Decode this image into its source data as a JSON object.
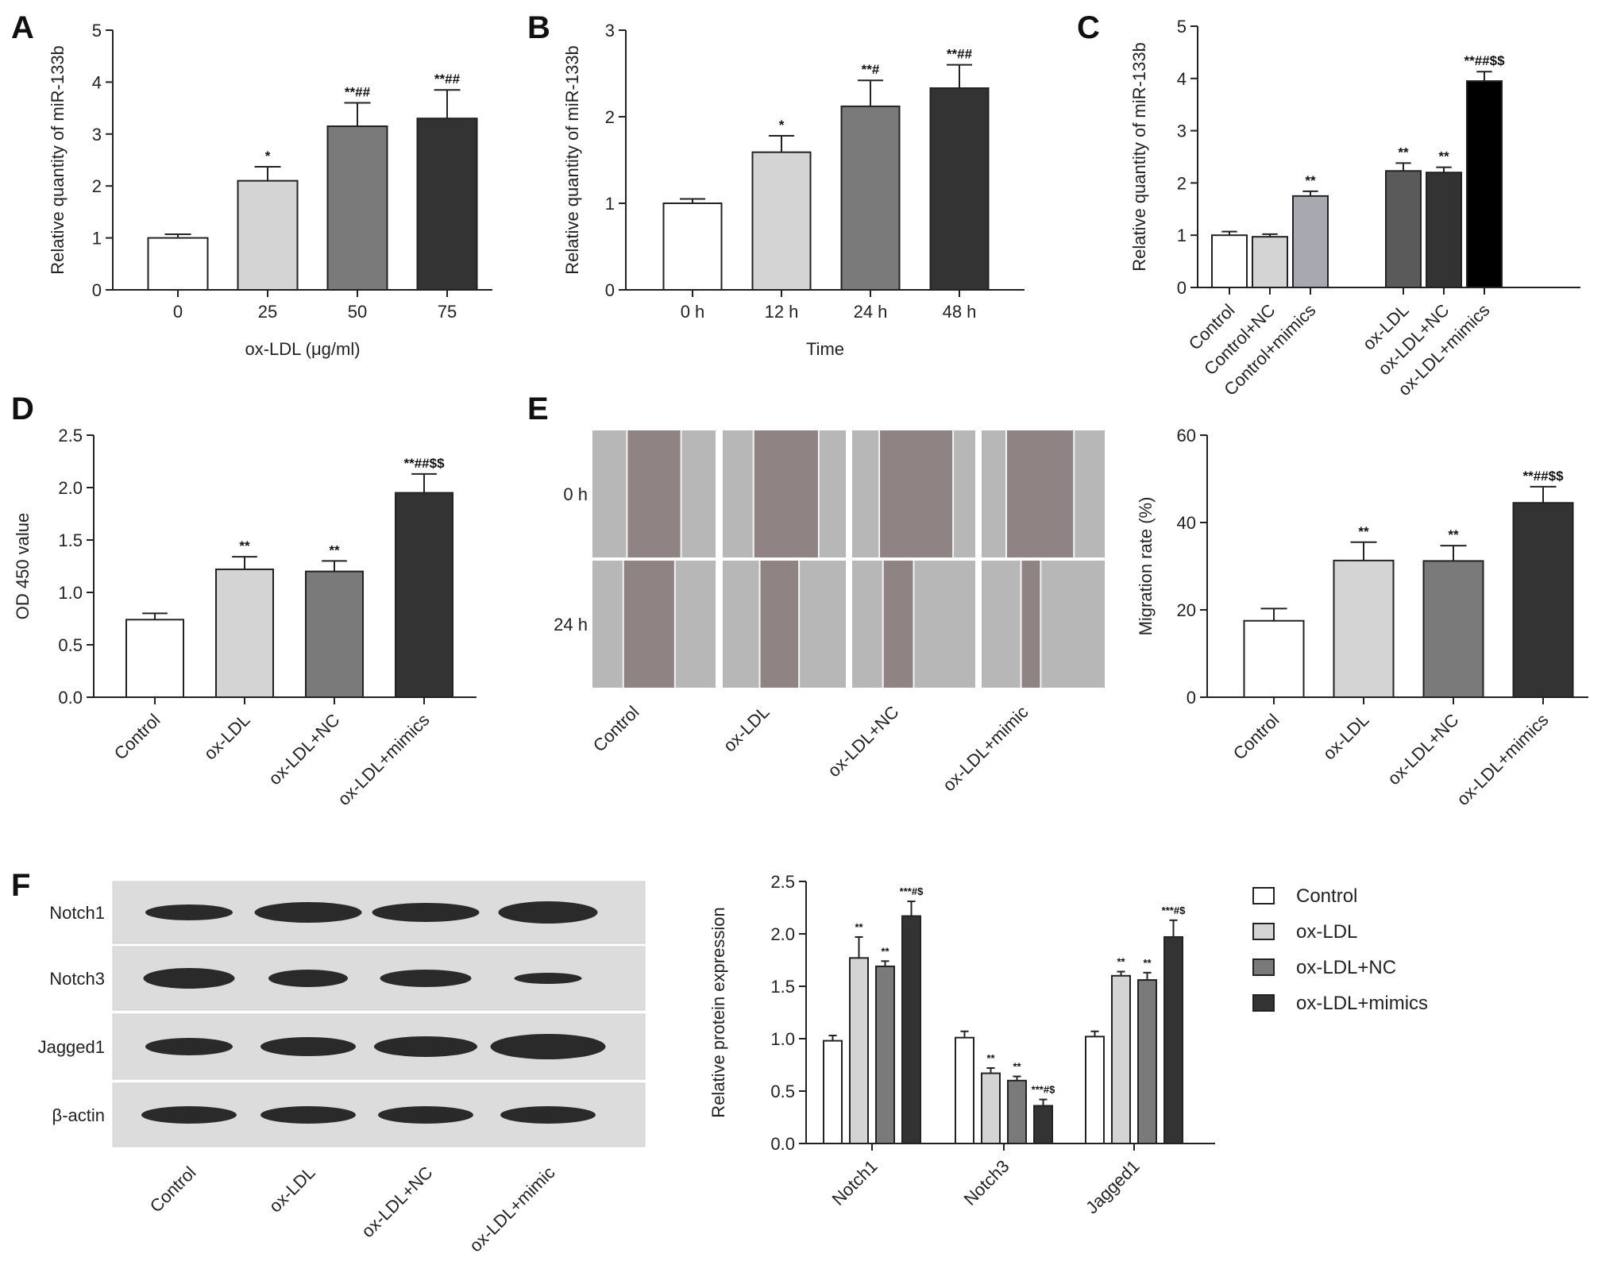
{
  "chart_data": [
    {
      "id": "A",
      "panel_label": "A",
      "type": "bar",
      "categories": [
        "0",
        "25",
        "50",
        "75"
      ],
      "values": [
        1.0,
        2.1,
        3.15,
        3.3
      ],
      "errors": [
        0.07,
        0.27,
        0.45,
        0.55
      ],
      "annotations": [
        "",
        "*",
        "**##",
        "**##"
      ],
      "colors": [
        "#ffffff",
        "#d4d4d4",
        "#7a7a7a",
        "#333333"
      ],
      "ylim": [
        0,
        5
      ],
      "yticks": [
        "0",
        "1",
        "2",
        "3",
        "4",
        "5"
      ],
      "xlabel": "ox-LDL (μg/ml)",
      "ylabel": "Relative quantity of miR-133b"
    },
    {
      "id": "B",
      "panel_label": "B",
      "type": "bar",
      "categories": [
        "0 h",
        "12 h",
        "24 h",
        "48 h"
      ],
      "values": [
        1.0,
        1.59,
        2.12,
        2.33
      ],
      "errors": [
        0.05,
        0.19,
        0.3,
        0.27
      ],
      "annotations": [
        "",
        "*",
        "**#",
        "**##"
      ],
      "colors": [
        "#ffffff",
        "#d4d4d4",
        "#7a7a7a",
        "#333333"
      ],
      "ylim": [
        0,
        3
      ],
      "yticks": [
        "0",
        "1",
        "2",
        "3"
      ],
      "xlabel": "Time",
      "ylabel": "Relative quantity of miR-133b"
    },
    {
      "id": "C",
      "panel_label": "C",
      "type": "bar",
      "categories": [
        "Control",
        "Control+NC",
        "Control+mimics",
        "ox-LDL",
        "ox-LDL+NC",
        "ox-LDL+mimics"
      ],
      "values": [
        1.0,
        0.97,
        1.75,
        2.23,
        2.2,
        3.95
      ],
      "errors": [
        0.07,
        0.05,
        0.09,
        0.15,
        0.1,
        0.18
      ],
      "annotations": [
        "",
        "",
        "**",
        "**",
        "**",
        "**##$$"
      ],
      "colors": [
        "#ffffff",
        "#d4d4d4",
        "#a8a8b0",
        "#5a5a5a",
        "#333333",
        "#000000"
      ],
      "ylim": [
        0,
        5
      ],
      "yticks": [
        "0",
        "1",
        "2",
        "3",
        "4",
        "5"
      ],
      "xlabel": "",
      "ylabel": "Relative quantity of miR-133b"
    },
    {
      "id": "D",
      "panel_label": "D",
      "type": "bar",
      "categories": [
        "Control",
        "ox-LDL",
        "ox-LDL+NC",
        "ox-LDL+mimics"
      ],
      "values": [
        0.74,
        1.22,
        1.2,
        1.95
      ],
      "errors": [
        0.06,
        0.12,
        0.1,
        0.18
      ],
      "annotations": [
        "",
        "**",
        "**",
        "**##$$"
      ],
      "colors": [
        "#ffffff",
        "#d4d4d4",
        "#7a7a7a",
        "#333333"
      ],
      "ylim": [
        0,
        2.5
      ],
      "yticks": [
        "0.0",
        "0.5",
        "1.0",
        "1.5",
        "2.0",
        "2.5"
      ],
      "xlabel": "",
      "ylabel": "OD 450 value"
    },
    {
      "id": "E",
      "panel_label": "",
      "type": "bar",
      "categories": [
        "Control",
        "ox-LDL",
        "ox-LDL+NC",
        "ox-LDL+mimics"
      ],
      "values": [
        17.5,
        31.3,
        31.2,
        44.5
      ],
      "errors": [
        2.8,
        4.2,
        3.5,
        3.7
      ],
      "annotations": [
        "",
        "**",
        "**",
        "**##$$"
      ],
      "colors": [
        "#ffffff",
        "#d4d4d4",
        "#7a7a7a",
        "#333333"
      ],
      "ylim": [
        0,
        60
      ],
      "yticks": [
        "0",
        "20",
        "40",
        "60"
      ],
      "xlabel": "",
      "ylabel": "Migration rate (%)"
    },
    {
      "id": "F",
      "panel_label": "",
      "type": "bar",
      "categories": [
        "Notch1",
        "Notch3",
        "Jagged1"
      ],
      "series": [
        {
          "name": "Control",
          "values": [
            0.98,
            1.01,
            1.02
          ],
          "errors": [
            0.05,
            0.06,
            0.05
          ],
          "annotations": [
            "",
            "",
            ""
          ],
          "color": "#ffffff"
        },
        {
          "name": "ox-LDL",
          "values": [
            1.77,
            0.67,
            1.6
          ],
          "errors": [
            0.2,
            0.05,
            0.04
          ],
          "annotations": [
            "**",
            "**",
            "**"
          ],
          "color": "#d4d4d4"
        },
        {
          "name": "ox-LDL+NC",
          "values": [
            1.69,
            0.6,
            1.56
          ],
          "errors": [
            0.05,
            0.04,
            0.07
          ],
          "annotations": [
            "**",
            "**",
            "**"
          ],
          "color": "#7a7a7a"
        },
        {
          "name": "ox-LDL+mimics",
          "values": [
            2.17,
            0.36,
            1.97
          ],
          "errors": [
            0.14,
            0.06,
            0.16
          ],
          "annotations": [
            "***#$",
            "***#$",
            "***#$"
          ],
          "color": "#333333"
        }
      ],
      "ylim": [
        0,
        2.5
      ],
      "yticks": [
        "0.0",
        "0.5",
        "1.0",
        "1.5",
        "2.0",
        "2.5"
      ],
      "xlabel": "",
      "ylabel": "Relative protein expression",
      "legend": "right"
    }
  ],
  "panel_E": {
    "label": "E",
    "rows": [
      "0 h",
      "24 h"
    ],
    "columns": [
      "Control",
      "ox-LDL",
      "ox-LDL+NC",
      "ox-LDL+mimic"
    ]
  },
  "panel_F": {
    "label": "F",
    "rows": [
      "Notch1",
      "Notch3",
      "Jagged1",
      "β-actin"
    ],
    "columns": [
      "Control",
      "ox-LDL",
      "ox-LDL+NC",
      "ox-LDL+mimic"
    ]
  },
  "colors": {
    "wound_gap": "#8f8383",
    "cell_area": "#b7b7b7",
    "blot_bg": "#dcdcdc",
    "band": "#1a1a1a"
  }
}
